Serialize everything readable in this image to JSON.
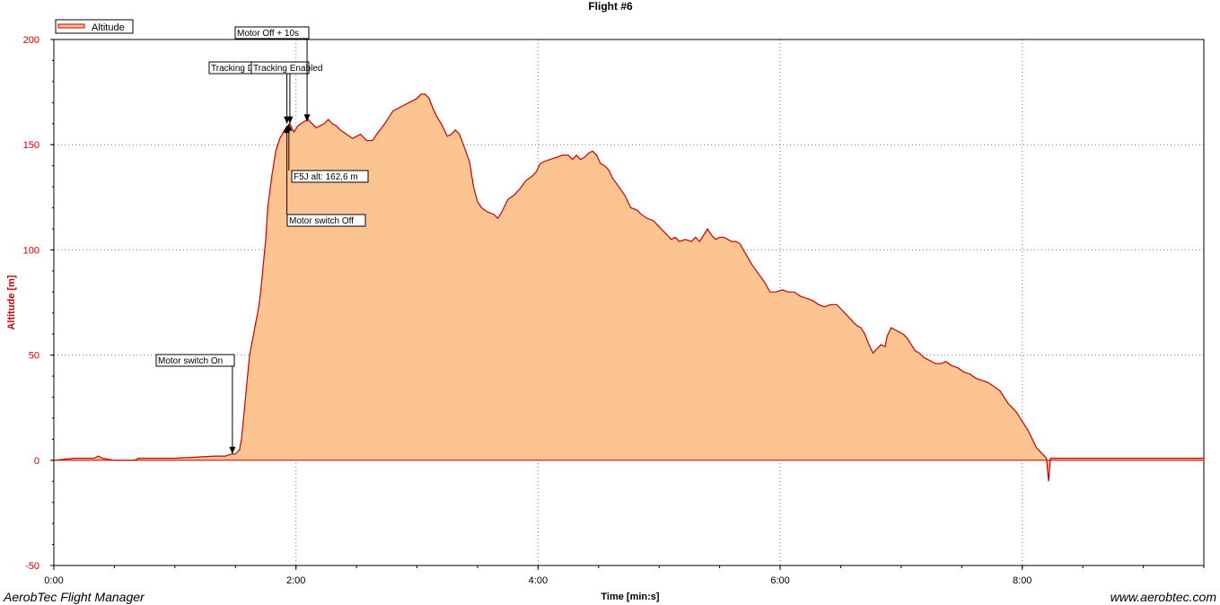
{
  "footer": {
    "left": "AerobTec Flight Manager",
    "right": "www.aerobtec.com"
  },
  "chart_data": {
    "type": "area",
    "title": "Flight #6",
    "xlabel": "Time [min:s]",
    "ylabel": "Altitude [m]",
    "xlim": [
      0,
      570
    ],
    "ylim": [
      -50,
      200
    ],
    "x_ticks": [
      {
        "value": 0,
        "label": "0:00"
      },
      {
        "value": 120,
        "label": "2:00"
      },
      {
        "value": 240,
        "label": "4:00"
      },
      {
        "value": 360,
        "label": "6:00"
      },
      {
        "value": 480,
        "label": "8:00"
      }
    ],
    "y_ticks": [
      {
        "value": -50,
        "label": "-50"
      },
      {
        "value": 0,
        "label": "0"
      },
      {
        "value": 50,
        "label": "50"
      },
      {
        "value": 100,
        "label": "100"
      },
      {
        "value": 150,
        "label": "150"
      },
      {
        "value": 200,
        "label": "200"
      }
    ],
    "grid": true,
    "legend": {
      "position": "top-left",
      "entries": [
        "Altitude"
      ]
    },
    "series": [
      {
        "name": "Altitude",
        "line_color": "#cc0000",
        "fill_color": "#fbc490",
        "points": [
          [
            0,
            0
          ],
          [
            10,
            1
          ],
          [
            20,
            1
          ],
          [
            22,
            2
          ],
          [
            24,
            1
          ],
          [
            30,
            0
          ],
          [
            40,
            0
          ],
          [
            42,
            1
          ],
          [
            60,
            1
          ],
          [
            80,
            2
          ],
          [
            85,
            2
          ],
          [
            88,
            3
          ],
          [
            90,
            3
          ],
          [
            91,
            4
          ],
          [
            92,
            5
          ],
          [
            93,
            10
          ],
          [
            94,
            20
          ],
          [
            95,
            30
          ],
          [
            96,
            40
          ],
          [
            97,
            50
          ],
          [
            98,
            55
          ],
          [
            99,
            60
          ],
          [
            100,
            65
          ],
          [
            101,
            70
          ],
          [
            102,
            76
          ],
          [
            103,
            85
          ],
          [
            104,
            95
          ],
          [
            105,
            105
          ],
          [
            106,
            120
          ],
          [
            108,
            135
          ],
          [
            110,
            147
          ],
          [
            112,
            153
          ],
          [
            115,
            158
          ],
          [
            117,
            160
          ],
          [
            119,
            156
          ],
          [
            121,
            159
          ],
          [
            124,
            161
          ],
          [
            126,
            162
          ],
          [
            128,
            160
          ],
          [
            130,
            158
          ],
          [
            134,
            160
          ],
          [
            136,
            162
          ],
          [
            138,
            160
          ],
          [
            140,
            159
          ],
          [
            142,
            157
          ],
          [
            145,
            155
          ],
          [
            148,
            153
          ],
          [
            150,
            154
          ],
          [
            152,
            155
          ],
          [
            155,
            152
          ],
          [
            158,
            152
          ],
          [
            160,
            155
          ],
          [
            164,
            160
          ],
          [
            168,
            166
          ],
          [
            172,
            168
          ],
          [
            176,
            170
          ],
          [
            180,
            172
          ],
          [
            182,
            174
          ],
          [
            184,
            174
          ],
          [
            186,
            172
          ],
          [
            188,
            167
          ],
          [
            190,
            163
          ],
          [
            192,
            160
          ],
          [
            195,
            154
          ],
          [
            197,
            155
          ],
          [
            199,
            157
          ],
          [
            201,
            155
          ],
          [
            203,
            150
          ],
          [
            206,
            142
          ],
          [
            208,
            130
          ],
          [
            210,
            123
          ],
          [
            212,
            120
          ],
          [
            215,
            118
          ],
          [
            218,
            117
          ],
          [
            220,
            115
          ],
          [
            222,
            118
          ],
          [
            225,
            124
          ],
          [
            228,
            126
          ],
          [
            231,
            129
          ],
          [
            234,
            133
          ],
          [
            237,
            135
          ],
          [
            239,
            137
          ],
          [
            241,
            141
          ],
          [
            243,
            142
          ],
          [
            246,
            143
          ],
          [
            249,
            144
          ],
          [
            252,
            145
          ],
          [
            255,
            145
          ],
          [
            257,
            143
          ],
          [
            259,
            145
          ],
          [
            261,
            143
          ],
          [
            263,
            144
          ],
          [
            265,
            146
          ],
          [
            267,
            147
          ],
          [
            269,
            145
          ],
          [
            271,
            141
          ],
          [
            273,
            140
          ],
          [
            275,
            138
          ],
          [
            277,
            134
          ],
          [
            280,
            130
          ],
          [
            283,
            126
          ],
          [
            286,
            120
          ],
          [
            289,
            119
          ],
          [
            291,
            117
          ],
          [
            294,
            115
          ],
          [
            297,
            114
          ],
          [
            300,
            111
          ],
          [
            303,
            108
          ],
          [
            306,
            105
          ],
          [
            308,
            106
          ],
          [
            310,
            104
          ],
          [
            313,
            105
          ],
          [
            316,
            104
          ],
          [
            318,
            106
          ],
          [
            320,
            104
          ],
          [
            322,
            107
          ],
          [
            324,
            110
          ],
          [
            326,
            107
          ],
          [
            328,
            105
          ],
          [
            330,
            106
          ],
          [
            332,
            106
          ],
          [
            334,
            105
          ],
          [
            336,
            104
          ],
          [
            338,
            104
          ],
          [
            340,
            103
          ],
          [
            343,
            98
          ],
          [
            346,
            93
          ],
          [
            349,
            89
          ],
          [
            352,
            85
          ],
          [
            355,
            80
          ],
          [
            358,
            80
          ],
          [
            361,
            81
          ],
          [
            364,
            80
          ],
          [
            367,
            80
          ],
          [
            370,
            78
          ],
          [
            373,
            77
          ],
          [
            376,
            76
          ],
          [
            379,
            74
          ],
          [
            382,
            73
          ],
          [
            385,
            74
          ],
          [
            388,
            74
          ],
          [
            390,
            72
          ],
          [
            392,
            70
          ],
          [
            395,
            67
          ],
          [
            398,
            64
          ],
          [
            400,
            63
          ],
          [
            402,
            60
          ],
          [
            404,
            55
          ],
          [
            406,
            51
          ],
          [
            408,
            53
          ],
          [
            410,
            55
          ],
          [
            412,
            54
          ],
          [
            413,
            59
          ],
          [
            415,
            63
          ],
          [
            417,
            62
          ],
          [
            419,
            61
          ],
          [
            421,
            60
          ],
          [
            423,
            58
          ],
          [
            425,
            55
          ],
          [
            427,
            52
          ],
          [
            429,
            51
          ],
          [
            431,
            49
          ],
          [
            433,
            48
          ],
          [
            435,
            47
          ],
          [
            437,
            46
          ],
          [
            440,
            46
          ],
          [
            442,
            47
          ],
          [
            445,
            45
          ],
          [
            448,
            44
          ],
          [
            451,
            42
          ],
          [
            454,
            41
          ],
          [
            457,
            39
          ],
          [
            460,
            38
          ],
          [
            463,
            37
          ],
          [
            466,
            35
          ],
          [
            469,
            33
          ],
          [
            471,
            30
          ],
          [
            473,
            27
          ],
          [
            475,
            25
          ],
          [
            477,
            23
          ],
          [
            479,
            20
          ],
          [
            481,
            17
          ],
          [
            483,
            14
          ],
          [
            485,
            10
          ],
          [
            487,
            6
          ],
          [
            489,
            4
          ],
          [
            490,
            3
          ],
          [
            491,
            2
          ],
          [
            492,
            1
          ],
          [
            493,
            -10
          ],
          [
            494,
            1
          ],
          [
            500,
            1
          ],
          [
            520,
            1
          ],
          [
            540,
            1
          ],
          [
            560,
            1
          ],
          [
            570,
            1
          ]
        ]
      }
    ],
    "annotations": [
      {
        "label": "Motor switch On",
        "x": 88.5,
        "y": 3
      },
      {
        "label": "Motor switch Off",
        "x": 115.5,
        "y": 159
      },
      {
        "label": "F5J alt: 162,6 m",
        "x": 116.5,
        "y": 160
      },
      {
        "label": "Tracking Disabled",
        "x": 115.5,
        "y": 160
      },
      {
        "label": "Tracking Enabled",
        "x": 117,
        "y": 160
      },
      {
        "label": "Motor Off + 10s",
        "x": 125.5,
        "y": 161
      }
    ]
  }
}
